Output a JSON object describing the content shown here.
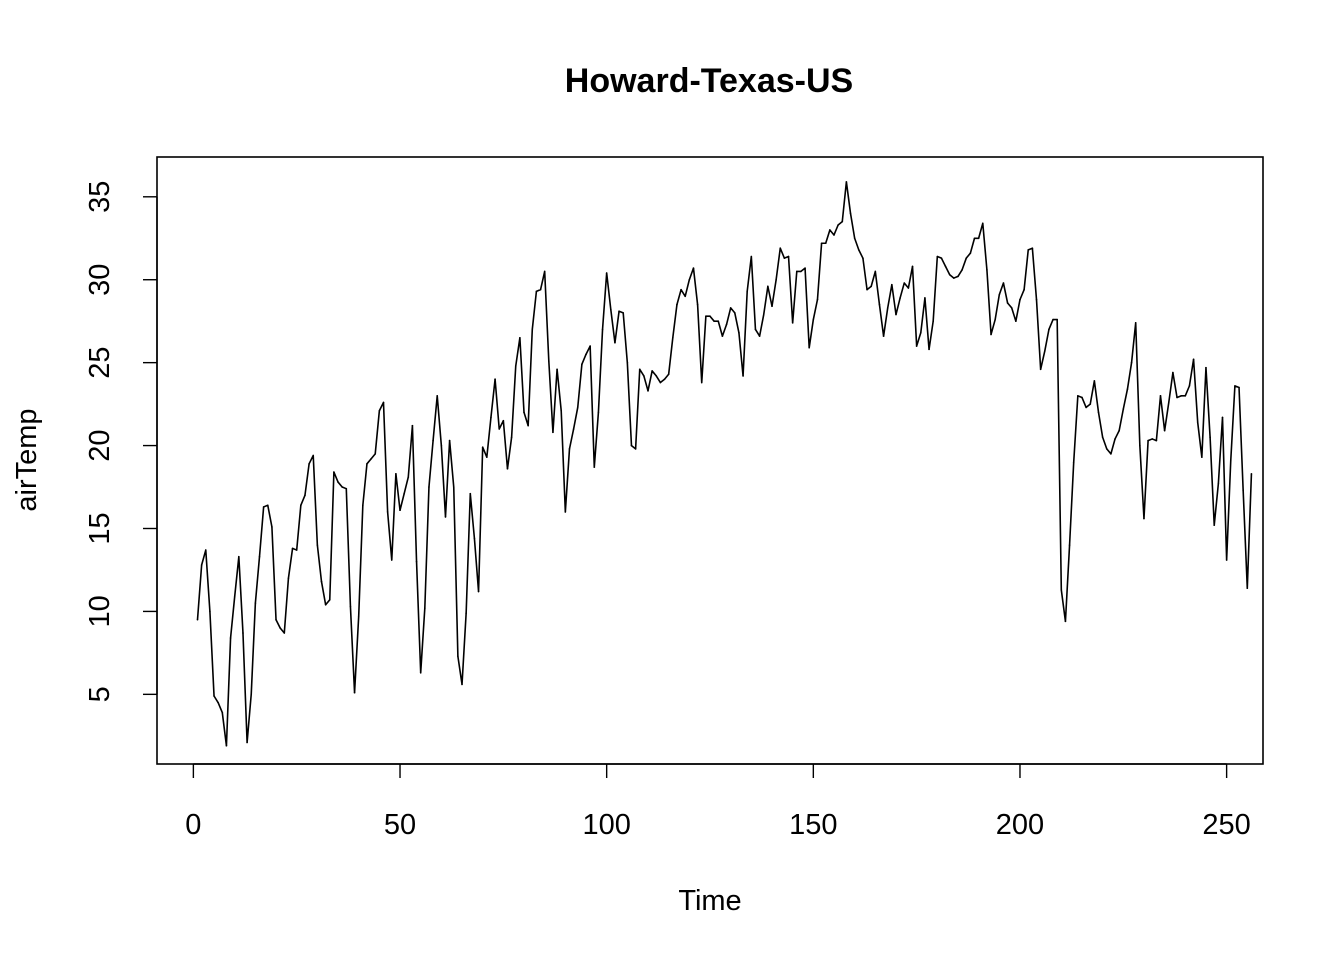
{
  "chart_data": {
    "type": "line",
    "title": "Howard-Texas-US",
    "xlabel": "Time",
    "ylabel": "airTemp",
    "xlim": [
      -8.8,
      258.8
    ],
    "ylim": [
      0.8,
      37.4
    ],
    "xticks": [
      0,
      50,
      100,
      150,
      200,
      250
    ],
    "yticks": [
      5,
      10,
      15,
      20,
      25,
      30,
      35
    ],
    "grid": false,
    "legend": "none",
    "colors": {
      "line": "#000000",
      "axis": "#000000",
      "background": "#ffffff"
    },
    "series": [
      {
        "x_start": 1,
        "x_step": 1,
        "values": [
          9.5,
          12.8,
          13.7,
          10.0,
          4.9,
          4.5,
          3.9,
          1.9,
          8.4,
          10.9,
          13.3,
          8.7,
          2.1,
          5.0,
          10.5,
          13.3,
          16.3,
          16.4,
          15.1,
          9.5,
          9.0,
          8.7,
          12.0,
          13.8,
          13.7,
          16.4,
          17.0,
          18.9,
          19.4,
          14.0,
          11.8,
          10.4,
          10.7,
          18.4,
          17.8,
          17.5,
          17.4,
          10.3,
          5.1,
          9.7,
          16.4,
          18.9,
          19.2,
          19.5,
          22.1,
          22.6,
          16.0,
          13.1,
          18.3,
          16.1,
          17.1,
          18.1,
          21.2,
          13.0,
          6.3,
          10.2,
          17.5,
          20.3,
          23.0,
          20.0,
          15.7,
          20.3,
          17.5,
          7.3,
          5.6,
          9.9,
          17.1,
          14.4,
          11.2,
          19.9,
          19.3,
          21.7,
          24.0,
          21.0,
          21.5,
          18.6,
          20.5,
          24.8,
          26.5,
          22.0,
          21.2,
          27.0,
          29.3,
          29.4,
          30.5,
          25.1,
          20.8,
          24.6,
          22.1,
          16.0,
          19.8,
          21.0,
          22.3,
          24.9,
          25.5,
          26.0,
          18.7,
          22.0,
          27.0,
          30.4,
          28.2,
          26.2,
          28.1,
          28.0,
          25.0,
          20.0,
          19.8,
          24.6,
          24.2,
          23.3,
          24.5,
          24.2,
          23.8,
          24.0,
          24.3,
          26.5,
          28.5,
          29.4,
          29.0,
          30.0,
          30.7,
          28.5,
          23.8,
          27.8,
          27.8,
          27.5,
          27.5,
          26.6,
          27.3,
          28.3,
          28.0,
          26.8,
          24.2,
          29.3,
          31.4,
          27.0,
          26.6,
          27.9,
          29.6,
          28.4,
          30.0,
          31.9,
          31.3,
          31.4,
          27.4,
          30.5,
          30.5,
          30.7,
          25.9,
          27.6,
          28.8,
          32.2,
          32.2,
          33.0,
          32.7,
          33.3,
          33.5,
          35.9,
          34.0,
          32.5,
          31.8,
          31.3,
          29.4,
          29.6,
          30.5,
          28.5,
          26.6,
          28.3,
          29.7,
          27.9,
          28.9,
          29.8,
          29.5,
          30.8,
          26.0,
          26.8,
          28.9,
          25.8,
          27.5,
          31.4,
          31.3,
          30.8,
          30.3,
          30.1,
          30.2,
          30.6,
          31.3,
          31.6,
          32.5,
          32.5,
          33.4,
          30.6,
          26.7,
          27.6,
          29.1,
          29.8,
          28.6,
          28.3,
          27.5,
          28.8,
          29.4,
          31.8,
          31.9,
          28.8,
          24.6,
          25.7,
          27.0,
          27.6,
          27.6,
          11.3,
          9.4,
          14.0,
          19.0,
          23.0,
          22.9,
          22.3,
          22.5,
          23.9,
          22.0,
          20.5,
          19.8,
          19.5,
          20.4,
          20.9,
          22.2,
          23.4,
          25.0,
          27.4,
          20.0,
          15.6,
          20.3,
          20.4,
          20.3,
          23.0,
          20.9,
          22.6,
          24.4,
          22.9,
          23.0,
          23.0,
          23.6,
          25.2,
          21.4,
          19.3,
          24.7,
          20.5,
          15.2,
          17.7,
          21.7,
          13.1,
          19.1,
          23.6,
          23.5,
          17.3,
          11.4,
          18.3
        ]
      }
    ]
  }
}
